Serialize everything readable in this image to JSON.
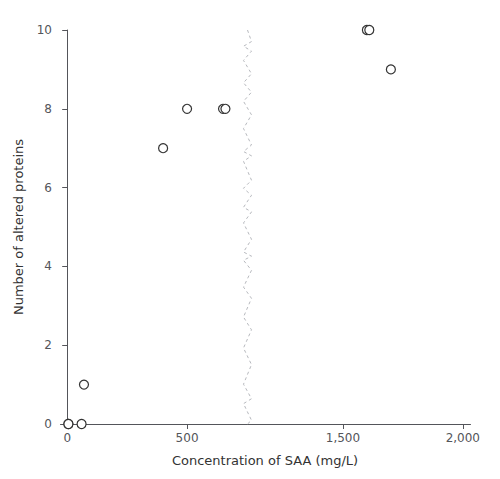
{
  "chart_data": {
    "type": "scatter",
    "xlabel": "Concentration of SAA (mg/L)",
    "ylabel": "Number of altered proteins",
    "x": [
      5,
      5,
      60,
      70,
      400,
      500,
      650,
      660,
      1600,
      1610,
      1700
    ],
    "values": [
      0,
      0,
      0,
      1,
      7,
      8,
      8,
      8,
      10,
      10,
      9
    ],
    "xlim": [
      -30,
      2030
    ],
    "xticks": [
      0,
      500,
      1500,
      2000
    ],
    "xbreak": [
      750,
      1100
    ],
    "ylim": [
      0,
      10
    ],
    "yticks": [
      0,
      2,
      4,
      6,
      8,
      10
    ],
    "grid": false,
    "marker": "circle",
    "color": "#333333"
  }
}
